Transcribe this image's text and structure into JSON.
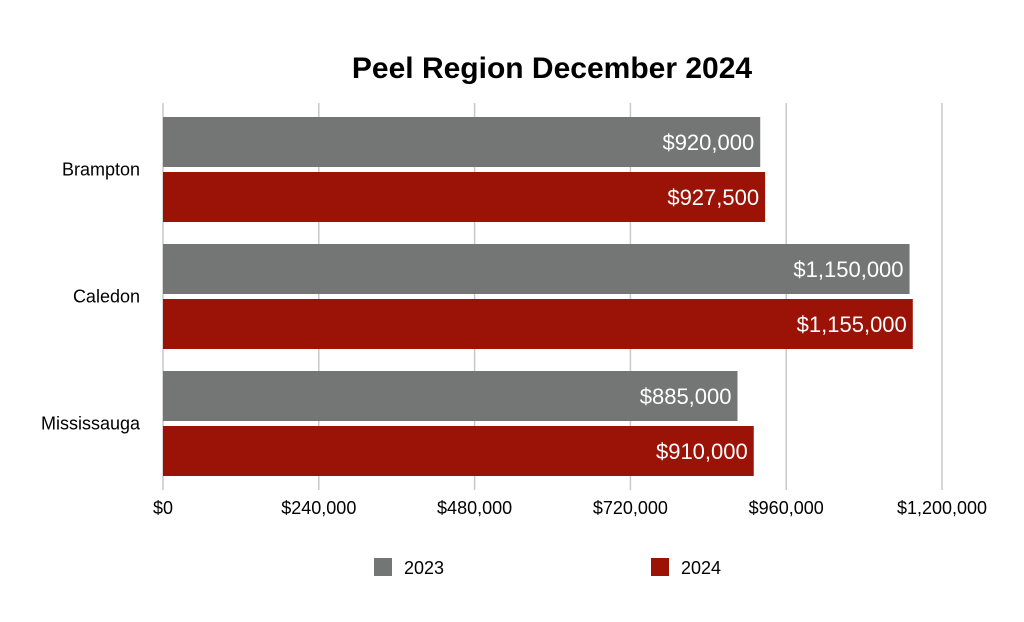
{
  "chart_data": {
    "type": "bar",
    "orientation": "horizontal",
    "title": "Peel Region December 2024",
    "categories": [
      "Brampton",
      "Caledon",
      "Mississauga"
    ],
    "series": [
      {
        "name": "2023",
        "color": "#737674",
        "values": [
          920000,
          1150000,
          885000
        ],
        "labels": [
          "$920,000",
          "$1,150,000",
          "$885,000"
        ]
      },
      {
        "name": "2024",
        "color": "#9b1206",
        "values": [
          927500,
          1155000,
          910000
        ],
        "labels": [
          "$927,500",
          "$1,155,000",
          "$910,000"
        ]
      }
    ],
    "xlim": [
      0,
      1200000
    ],
    "xticks": [
      0,
      240000,
      480000,
      720000,
      960000,
      1200000
    ],
    "xtick_labels": [
      "$0",
      "$240,000",
      "$480,000",
      "$720,000",
      "$960,000",
      "$1,200,000"
    ],
    "grid": true,
    "legend_position": "bottom"
  }
}
